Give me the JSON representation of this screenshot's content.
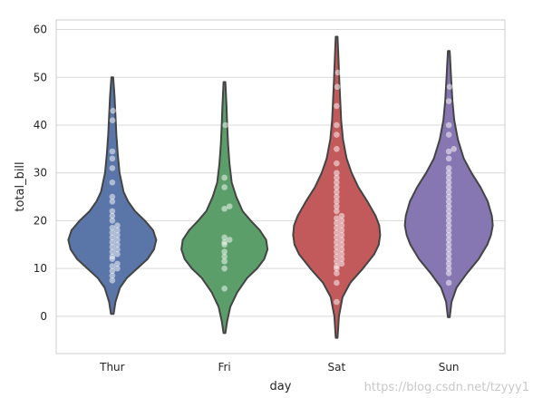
{
  "chart_data": {
    "type": "violin",
    "xlabel": "day",
    "ylabel": "total_bill",
    "ylim": [
      -7.8,
      62
    ],
    "yticks": [
      0,
      10,
      20,
      30,
      40,
      50,
      60
    ],
    "grid": "horizontal",
    "categories": [
      "Thur",
      "Fri",
      "Sat",
      "Sun"
    ],
    "colors": [
      "#5a76a8",
      "#5b9e69",
      "#c25a5c",
      "#8676b1"
    ],
    "violins": [
      {
        "category": "Thur",
        "min": 0.5,
        "max": 50,
        "profile": [
          [
            0.5,
            0.03
          ],
          [
            3,
            0.07
          ],
          [
            6,
            0.17
          ],
          [
            8,
            0.32
          ],
          [
            10,
            0.55
          ],
          [
            12,
            0.78
          ],
          [
            14,
            0.92
          ],
          [
            16,
            0.97
          ],
          [
            18,
            0.9
          ],
          [
            20,
            0.72
          ],
          [
            22,
            0.5
          ],
          [
            24,
            0.35
          ],
          [
            26,
            0.25
          ],
          [
            30,
            0.16
          ],
          [
            34,
            0.12
          ],
          [
            38,
            0.09
          ],
          [
            42,
            0.07
          ],
          [
            46,
            0.05
          ],
          [
            50,
            0.02
          ]
        ],
        "points": [
          7.5,
          8.5,
          9.5,
          10.0,
          10.5,
          11.0,
          12.0,
          12.5,
          13.0,
          13.5,
          14.0,
          14.5,
          15.0,
          15.5,
          16.0,
          16.5,
          17.0,
          17.5,
          18.0,
          18.5,
          19.0,
          20.0,
          21.0,
          22.0,
          24.0,
          25.0,
          28.0,
          31.0,
          33.0,
          34.5,
          41.0,
          43.0
        ]
      },
      {
        "category": "Fri",
        "min": -3.5,
        "max": 49,
        "profile": [
          [
            -3.5,
            0.02
          ],
          [
            -1,
            0.06
          ],
          [
            2,
            0.13
          ],
          [
            5,
            0.28
          ],
          [
            8,
            0.5
          ],
          [
            10,
            0.72
          ],
          [
            12,
            0.88
          ],
          [
            14,
            0.95
          ],
          [
            16,
            0.92
          ],
          [
            18,
            0.78
          ],
          [
            20,
            0.58
          ],
          [
            22,
            0.4
          ],
          [
            25,
            0.26
          ],
          [
            28,
            0.16
          ],
          [
            32,
            0.11
          ],
          [
            36,
            0.08
          ],
          [
            40,
            0.06
          ],
          [
            44,
            0.045
          ],
          [
            49,
            0.02
          ]
        ],
        "points": [
          5.8,
          10.0,
          11.5,
          12.5,
          13.5,
          15.0,
          15.5,
          16.0,
          16.5,
          22.5,
          23.0,
          27.0,
          29.0,
          40.0
        ]
      },
      {
        "category": "Sat",
        "min": -4.5,
        "max": 58.5,
        "profile": [
          [
            -4.5,
            0.02
          ],
          [
            0,
            0.05
          ],
          [
            4,
            0.13
          ],
          [
            7,
            0.3
          ],
          [
            10,
            0.58
          ],
          [
            13,
            0.83
          ],
          [
            15,
            0.93
          ],
          [
            17,
            0.96
          ],
          [
            19,
            0.94
          ],
          [
            21,
            0.86
          ],
          [
            24,
            0.68
          ],
          [
            27,
            0.48
          ],
          [
            30,
            0.33
          ],
          [
            33,
            0.22
          ],
          [
            37,
            0.14
          ],
          [
            41,
            0.1
          ],
          [
            45,
            0.08
          ],
          [
            49,
            0.06
          ],
          [
            54,
            0.04
          ],
          [
            58.5,
            0.02
          ]
        ],
        "points": [
          3.0,
          7.0,
          9.0,
          10.0,
          10.5,
          11.0,
          11.5,
          12.0,
          12.5,
          13.0,
          13.5,
          14.0,
          14.5,
          15.0,
          15.5,
          16.0,
          16.5,
          17.0,
          17.5,
          18.0,
          18.5,
          19.0,
          19.5,
          20.0,
          20.5,
          21.0,
          22.0,
          23.0,
          24.0,
          25.0,
          26.0,
          27.0,
          28.0,
          29.0,
          30.0,
          32.0,
          35.0,
          38.0,
          40.0,
          44.0,
          48.0,
          51.0
        ]
      },
      {
        "category": "Sun",
        "min": -0.2,
        "max": 55.5,
        "profile": [
          [
            -0.2,
            0.02
          ],
          [
            3,
            0.06
          ],
          [
            6,
            0.17
          ],
          [
            9,
            0.4
          ],
          [
            12,
            0.66
          ],
          [
            15,
            0.85
          ],
          [
            17,
            0.93
          ],
          [
            19,
            0.97
          ],
          [
            21,
            0.95
          ],
          [
            24,
            0.86
          ],
          [
            27,
            0.7
          ],
          [
            30,
            0.5
          ],
          [
            33,
            0.33
          ],
          [
            37,
            0.2
          ],
          [
            41,
            0.12
          ],
          [
            45,
            0.08
          ],
          [
            50,
            0.05
          ],
          [
            55.5,
            0.02
          ]
        ],
        "points": [
          7.0,
          9.0,
          10.0,
          11.0,
          12.0,
          13.0,
          14.0,
          15.0,
          16.0,
          17.0,
          18.0,
          19.0,
          20.0,
          21.0,
          22.0,
          23.0,
          24.0,
          25.0,
          26.0,
          27.0,
          28.0,
          29.0,
          30.0,
          31.0,
          33.0,
          34.5,
          35.0,
          38.0,
          40.0,
          45.0,
          48.0
        ]
      }
    ]
  },
  "watermark": "https://blog.csdn.net/tzyyy1"
}
